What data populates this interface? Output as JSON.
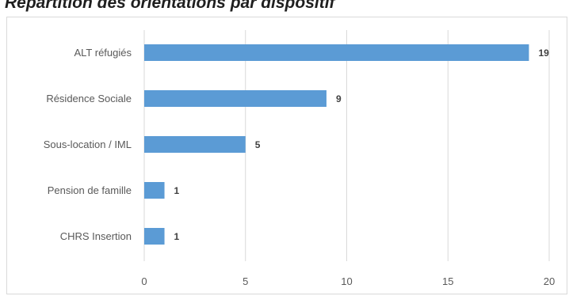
{
  "chart_data": {
    "type": "bar",
    "orientation": "horizontal",
    "title": "Répartition des orientations par dispositif",
    "categories": [
      "ALT réfugiés",
      "Résidence Sociale",
      "Sous-location / IML",
      "Pension de famille",
      "CHRS Insertion"
    ],
    "values": [
      19,
      9,
      5,
      1,
      1
    ],
    "data_labels": [
      "19",
      "9",
      "5",
      "1",
      "1"
    ],
    "xlim": [
      0,
      20
    ],
    "xticks": [
      "0",
      "5",
      "10",
      "15",
      "20"
    ],
    "xlabel": "",
    "ylabel": "",
    "grid": true,
    "bar_color": "#5b9bd5",
    "gridline_color": "#d9d9d9"
  }
}
